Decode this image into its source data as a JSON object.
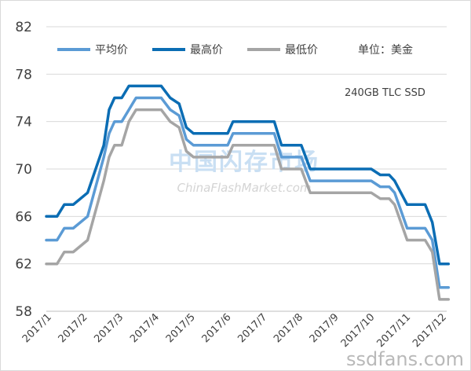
{
  "chart_data": {
    "type": "line",
    "x": [
      "2017/1",
      "2017/2",
      "2017/3",
      "2017/4",
      "2017/5",
      "2017/6",
      "2017/7",
      "2017/8",
      "2017/9",
      "2017/10",
      "2017/11",
      "2017/12"
    ],
    "ylim": [
      58,
      82
    ],
    "yticks": [
      58,
      62,
      66,
      70,
      74,
      78,
      82
    ],
    "grid": true,
    "legend_position": "top",
    "unit_label": "单位：美金",
    "annotation": "240GB TLC SSD",
    "series": [
      {
        "name": "平均价",
        "color": "#5b9bd5",
        "points": [
          [
            0,
            64
          ],
          [
            0.3,
            64
          ],
          [
            0.5,
            65
          ],
          [
            0.75,
            65
          ],
          [
            1.15,
            66
          ],
          [
            1.6,
            71
          ],
          [
            1.75,
            73
          ],
          [
            1.9,
            74
          ],
          [
            2.1,
            74
          ],
          [
            2.3,
            75
          ],
          [
            2.5,
            76
          ],
          [
            2.75,
            76
          ],
          [
            3,
            76
          ],
          [
            3.2,
            76
          ],
          [
            3.45,
            75
          ],
          [
            3.7,
            74.5
          ],
          [
            3.9,
            72.5
          ],
          [
            4.1,
            72
          ],
          [
            4.4,
            72
          ],
          [
            4.7,
            72
          ],
          [
            5.05,
            72
          ],
          [
            5.2,
            73
          ],
          [
            5.5,
            73
          ],
          [
            5.8,
            73
          ],
          [
            6.05,
            73
          ],
          [
            6.35,
            73
          ],
          [
            6.55,
            71
          ],
          [
            6.9,
            71
          ],
          [
            7.1,
            71
          ],
          [
            7.35,
            69
          ],
          [
            8.5,
            69
          ],
          [
            8.7,
            69
          ],
          [
            9.05,
            69
          ],
          [
            9.3,
            68.5
          ],
          [
            9.55,
            68.5
          ],
          [
            9.7,
            68
          ],
          [
            10.05,
            65
          ],
          [
            10.3,
            65
          ],
          [
            10.55,
            65
          ],
          [
            10.75,
            64
          ],
          [
            10.95,
            60
          ],
          [
            11.2,
            60
          ]
        ]
      },
      {
        "name": "最高价",
        "color": "#0b6db4",
        "points": [
          [
            0,
            66
          ],
          [
            0.3,
            66
          ],
          [
            0.5,
            67
          ],
          [
            0.75,
            67
          ],
          [
            1.15,
            68
          ],
          [
            1.6,
            72
          ],
          [
            1.75,
            75
          ],
          [
            1.9,
            76
          ],
          [
            2.1,
            76
          ],
          [
            2.3,
            77
          ],
          [
            2.5,
            77
          ],
          [
            2.75,
            77
          ],
          [
            3,
            77
          ],
          [
            3.2,
            77
          ],
          [
            3.45,
            76
          ],
          [
            3.7,
            75.5
          ],
          [
            3.9,
            73.5
          ],
          [
            4.1,
            73
          ],
          [
            4.4,
            73
          ],
          [
            4.7,
            73
          ],
          [
            5.05,
            73
          ],
          [
            5.2,
            74
          ],
          [
            5.5,
            74
          ],
          [
            5.8,
            74
          ],
          [
            6.05,
            74
          ],
          [
            6.35,
            74
          ],
          [
            6.55,
            72
          ],
          [
            6.9,
            72
          ],
          [
            7.1,
            72
          ],
          [
            7.35,
            70
          ],
          [
            8.5,
            70
          ],
          [
            8.7,
            70
          ],
          [
            9.05,
            70
          ],
          [
            9.3,
            69.5
          ],
          [
            9.55,
            69.5
          ],
          [
            9.7,
            69
          ],
          [
            10.05,
            67
          ],
          [
            10.3,
            67
          ],
          [
            10.55,
            67
          ],
          [
            10.75,
            65.5
          ],
          [
            10.95,
            62
          ],
          [
            11.2,
            62
          ]
        ]
      },
      {
        "name": "最低价",
        "color": "#a5a5a5",
        "points": [
          [
            0,
            62
          ],
          [
            0.3,
            62
          ],
          [
            0.5,
            63
          ],
          [
            0.75,
            63
          ],
          [
            1.15,
            64
          ],
          [
            1.6,
            69
          ],
          [
            1.75,
            71
          ],
          [
            1.9,
            72
          ],
          [
            2.1,
            72
          ],
          [
            2.3,
            74
          ],
          [
            2.5,
            75
          ],
          [
            2.75,
            75
          ],
          [
            3,
            75
          ],
          [
            3.2,
            75
          ],
          [
            3.45,
            74
          ],
          [
            3.7,
            73.5
          ],
          [
            3.9,
            71.5
          ],
          [
            4.1,
            71
          ],
          [
            4.4,
            71
          ],
          [
            4.7,
            71
          ],
          [
            5.05,
            71
          ],
          [
            5.2,
            72
          ],
          [
            5.5,
            72
          ],
          [
            5.8,
            72
          ],
          [
            6.05,
            72
          ],
          [
            6.35,
            72
          ],
          [
            6.55,
            70
          ],
          [
            6.9,
            70
          ],
          [
            7.1,
            70
          ],
          [
            7.35,
            68
          ],
          [
            8.5,
            68
          ],
          [
            8.7,
            68
          ],
          [
            9.05,
            68
          ],
          [
            9.3,
            67.5
          ],
          [
            9.55,
            67.5
          ],
          [
            9.7,
            67
          ],
          [
            10.05,
            64
          ],
          [
            10.3,
            64
          ],
          [
            10.55,
            64
          ],
          [
            10.75,
            63
          ],
          [
            10.95,
            59
          ],
          [
            11.2,
            59
          ]
        ]
      }
    ]
  },
  "watermark": {
    "cn": "中国闪存市场",
    "en": "ChinaFlashMarket.com",
    "site": "ssdfans.com"
  }
}
